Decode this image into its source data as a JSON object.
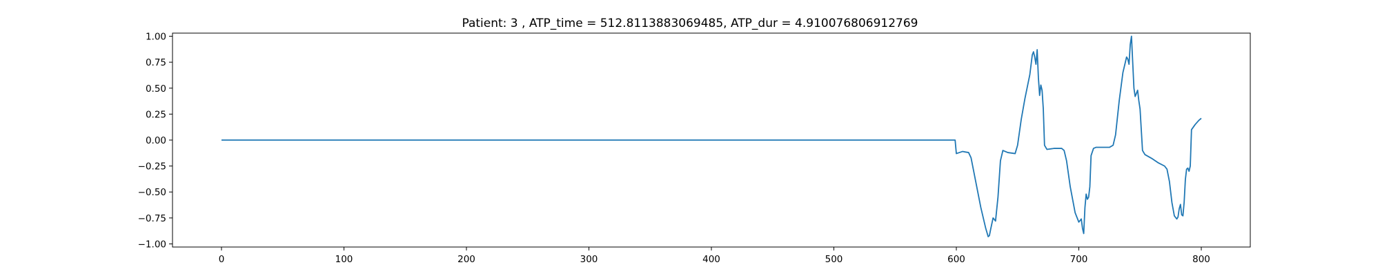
{
  "chart_data": {
    "type": "line",
    "title": "Patient: 3 , ATP_time = 512.8113883069485, ATP_dur = 4.910076806912769",
    "xlabel": "",
    "ylabel": "",
    "xlim": [
      -40,
      840
    ],
    "ylim": [
      -1.03,
      1.03
    ],
    "xticks": [
      0,
      100,
      200,
      300,
      400,
      500,
      600,
      700,
      800
    ],
    "xtick_labels": [
      "0",
      "100",
      "200",
      "300",
      "400",
      "500",
      "600",
      "700",
      "800"
    ],
    "yticks": [
      1.0,
      0.75,
      0.5,
      0.25,
      0.0,
      -0.25,
      -0.5,
      -0.75,
      -1.0
    ],
    "ytick_labels": [
      "1.00",
      "0.75",
      "0.50",
      "0.25",
      "0.00",
      "−0.25",
      "−0.50",
      "−0.75",
      "−1.00"
    ],
    "grid": false,
    "legend": "none",
    "series": [
      {
        "color": "#1f77b4",
        "x": [
          0,
          100,
          200,
          300,
          400,
          500,
          598,
          599,
          600,
          605,
          610,
          612,
          615,
          620,
          624,
          626,
          627,
          628,
          630,
          632,
          634,
          636,
          638,
          642,
          648,
          650,
          653,
          656,
          660,
          662,
          663,
          664,
          665,
          666,
          667,
          668,
          669,
          670,
          671,
          672,
          674,
          680,
          686,
          688,
          690,
          693,
          697,
          700,
          702,
          703,
          704,
          705,
          706,
          707,
          708,
          709,
          710,
          712,
          714,
          716,
          720,
          725,
          728,
          730,
          733,
          736,
          739,
          740,
          741,
          742,
          743,
          744,
          745,
          746,
          747,
          748,
          749,
          750,
          751,
          752,
          754,
          760,
          765,
          770,
          772,
          774,
          776,
          778,
          780,
          781,
          782,
          783,
          784,
          785,
          786,
          787,
          788,
          789,
          790,
          791,
          792,
          795,
          798,
          800
        ],
        "y": [
          0,
          0,
          0,
          0,
          0,
          0,
          0,
          0,
          -0.13,
          -0.11,
          -0.12,
          -0.17,
          -0.35,
          -0.65,
          -0.85,
          -0.93,
          -0.92,
          -0.86,
          -0.75,
          -0.78,
          -0.55,
          -0.2,
          -0.1,
          -0.12,
          -0.13,
          -0.05,
          0.2,
          0.4,
          0.63,
          0.82,
          0.85,
          0.8,
          0.73,
          0.87,
          0.6,
          0.43,
          0.53,
          0.48,
          0.3,
          -0.05,
          -0.09,
          -0.08,
          -0.08,
          -0.1,
          -0.2,
          -0.45,
          -0.7,
          -0.79,
          -0.76,
          -0.85,
          -0.9,
          -0.65,
          -0.52,
          -0.57,
          -0.55,
          -0.45,
          -0.15,
          -0.08,
          -0.07,
          -0.07,
          -0.07,
          -0.07,
          -0.05,
          0.05,
          0.38,
          0.65,
          0.8,
          0.78,
          0.73,
          0.92,
          1.0,
          0.75,
          0.5,
          0.42,
          0.45,
          0.48,
          0.38,
          0.3,
          0.1,
          -0.1,
          -0.14,
          -0.18,
          -0.22,
          -0.25,
          -0.28,
          -0.4,
          -0.6,
          -0.73,
          -0.76,
          -0.74,
          -0.66,
          -0.62,
          -0.72,
          -0.73,
          -0.6,
          -0.38,
          -0.28,
          -0.27,
          -0.3,
          -0.25,
          0.1,
          0.15,
          0.19,
          0.21
        ]
      }
    ]
  }
}
